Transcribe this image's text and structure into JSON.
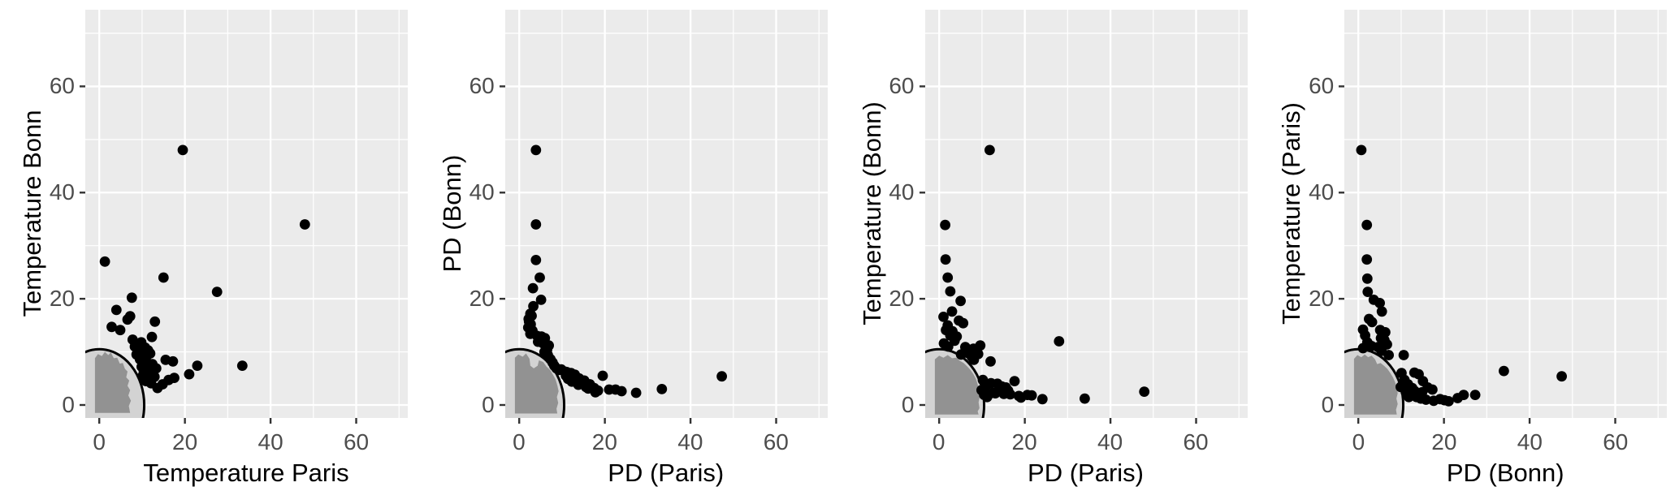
{
  "figure_title": "",
  "style": {
    "page_background": "#ffffff",
    "panel_background": "#ebebeb",
    "grid_color": "#ffffff",
    "point_color": "#000000",
    "circle_fill": "#d3d3d3",
    "circle_stroke": "#000000",
    "cluster_blob_color": "#929292",
    "tick_mark_color": "#333333",
    "tick_label_color": "#4d4d4d",
    "axis_title_color": "#000000"
  },
  "axes": {
    "tick_values": [
      0,
      20,
      40,
      60
    ],
    "major_gridlines": [
      0,
      20,
      40,
      60
    ],
    "minor_gridlines": [
      10,
      30,
      50,
      70
    ],
    "xlim": [
      -3.3,
      72.0
    ],
    "ylim": [
      -2.45,
      74.4
    ],
    "grid": "on",
    "legend": "none"
  },
  "chart_data": [
    {
      "type": "scatter",
      "xlabel": "Temperature Paris",
      "ylabel": "Temperature Bonn",
      "x_tick_labels": [
        "0",
        "20",
        "40",
        "60"
      ],
      "y_tick_labels": [
        "0",
        "20",
        "40",
        "60"
      ],
      "decision_circle": {
        "cx": 0,
        "cy": 0,
        "r": 10.5
      },
      "cluster_description": "dense cluster of overlapping grey inlier points inside quarter-circle near origin",
      "cluster_blob": [
        [
          -1,
          -1.5
        ],
        [
          -1,
          8.8
        ],
        [
          -0.3,
          9.6
        ],
        [
          0.6,
          9.2
        ],
        [
          1.3,
          10.0
        ],
        [
          2.1,
          9.4
        ],
        [
          2.7,
          9.9
        ],
        [
          3.4,
          8.8
        ],
        [
          4.2,
          8.9
        ],
        [
          4.8,
          7.8
        ],
        [
          5.5,
          7.9
        ],
        [
          6.0,
          6.8
        ],
        [
          6.6,
          6.3
        ],
        [
          6.3,
          5.2
        ],
        [
          7.0,
          4.6
        ],
        [
          6.6,
          3.6
        ],
        [
          7.2,
          2.8
        ],
        [
          6.8,
          1.8
        ],
        [
          7.4,
          0.8
        ],
        [
          6.9,
          -0.2
        ],
        [
          7.2,
          -1.5
        ]
      ],
      "points": [
        [
          19.5,
          48
        ],
        [
          48,
          34
        ],
        [
          1.3,
          27
        ],
        [
          15,
          24
        ],
        [
          27.5,
          21.3
        ],
        [
          7.6,
          20.2
        ],
        [
          4,
          17.9
        ],
        [
          7.2,
          16.7
        ],
        [
          6.6,
          16.1
        ],
        [
          13,
          15.7
        ],
        [
          2.9,
          14.7
        ],
        [
          4.9,
          14.1
        ],
        [
          12.3,
          12.8
        ],
        [
          7.8,
          12.3
        ],
        [
          9.8,
          11.8
        ],
        [
          8.3,
          11
        ],
        [
          10.7,
          10.8
        ],
        [
          11.4,
          10.3
        ],
        [
          9.2,
          10.4
        ],
        [
          8.7,
          9.5
        ],
        [
          10.2,
          9.1
        ],
        [
          11.9,
          9.7
        ],
        [
          9.5,
          8.6
        ],
        [
          10.9,
          8.3
        ],
        [
          12.4,
          7.7
        ],
        [
          15.5,
          8.5
        ],
        [
          17.2,
          8.2
        ],
        [
          22.9,
          7.4
        ],
        [
          33.4,
          7.4
        ],
        [
          21,
          5.8
        ],
        [
          17.5,
          5.1
        ],
        [
          16.2,
          4.7
        ],
        [
          14.8,
          3.9
        ],
        [
          13.6,
          3.2
        ],
        [
          12.9,
          5.3
        ],
        [
          11.6,
          6.4
        ],
        [
          10.9,
          4.5
        ],
        [
          13.3,
          6.9
        ],
        [
          12.1,
          4.1
        ],
        [
          11.2,
          7.4
        ],
        [
          10.4,
          6.2
        ],
        [
          9.9,
          7.2
        ],
        [
          10.1,
          5.4
        ],
        [
          11,
          5.9
        ],
        [
          12.6,
          6.1
        ],
        [
          9.7,
          9.9
        ],
        [
          8.9,
          10.6
        ],
        [
          9.9,
          10.9
        ],
        [
          10.5,
          9.9
        ],
        [
          11.1,
          9.3
        ],
        [
          10,
          8.4
        ]
      ]
    },
    {
      "type": "scatter",
      "xlabel": "PD (Paris)",
      "ylabel": "PD (Bonn)",
      "x_tick_labels": [
        "0",
        "20",
        "40",
        "60"
      ],
      "y_tick_labels": [
        "0",
        "20",
        "40",
        "60"
      ],
      "decision_circle": {
        "cx": 0,
        "cy": 0,
        "r": 10.5
      },
      "cluster_description": "dense cluster of overlapping grey inlier points filling quarter-circle near origin",
      "cluster_blob": [
        [
          -1,
          -1.6
        ],
        [
          -1,
          8.9
        ],
        [
          -0.2,
          9.5
        ],
        [
          0.8,
          9.1
        ],
        [
          1.6,
          9.7
        ],
        [
          2.4,
          8.7
        ],
        [
          2.6,
          7.4
        ],
        [
          3.4,
          6.9
        ],
        [
          4.3,
          7.4
        ],
        [
          4.6,
          8.4
        ],
        [
          5.6,
          8.1
        ],
        [
          6.4,
          7.2
        ],
        [
          7.2,
          6.6
        ],
        [
          7.9,
          5.7
        ],
        [
          8.5,
          4.8
        ],
        [
          8.9,
          3.7
        ],
        [
          9.2,
          2.6
        ],
        [
          8.8,
          1.5
        ],
        [
          9.1,
          0.4
        ],
        [
          8.7,
          -0.7
        ],
        [
          8.9,
          -1.6
        ]
      ],
      "points": [
        [
          3.9,
          48
        ],
        [
          3.9,
          34
        ],
        [
          3.9,
          27.3
        ],
        [
          4.8,
          24
        ],
        [
          3.2,
          22
        ],
        [
          5.1,
          19.8
        ],
        [
          3.3,
          18.6
        ],
        [
          2.6,
          17.2
        ],
        [
          2.2,
          16.2
        ],
        [
          2.9,
          16.8
        ],
        [
          2.7,
          15.2
        ],
        [
          2.3,
          15.7
        ],
        [
          2.1,
          14.6
        ],
        [
          3.1,
          14
        ],
        [
          2.6,
          13.4
        ],
        [
          4.2,
          13
        ],
        [
          5.2,
          12.9
        ],
        [
          6,
          12.6
        ],
        [
          5.6,
          11.6
        ],
        [
          4.4,
          11.9
        ],
        [
          6.9,
          11.2
        ],
        [
          6.5,
          10.4
        ],
        [
          5.9,
          10
        ],
        [
          6.7,
          9.4
        ],
        [
          7.3,
          8.6
        ],
        [
          7.8,
          8
        ],
        [
          8.2,
          7.4
        ],
        [
          8.7,
          6.9
        ],
        [
          9.3,
          6.6
        ],
        [
          9.8,
          6.7
        ],
        [
          10.6,
          6.3
        ],
        [
          11.1,
          6.2
        ],
        [
          11.6,
          5.8
        ],
        [
          12.1,
          6
        ],
        [
          12.6,
          5.4
        ],
        [
          13,
          5.7
        ],
        [
          13.5,
          5
        ],
        [
          14,
          5
        ],
        [
          14.9,
          4.2
        ],
        [
          15.6,
          3.4
        ],
        [
          16.5,
          3.9
        ],
        [
          17.5,
          3.2
        ],
        [
          17.8,
          2.4
        ],
        [
          18.4,
          2.7
        ],
        [
          19.5,
          5.5
        ],
        [
          21,
          2.9
        ],
        [
          22.5,
          2.9
        ],
        [
          23.9,
          2.6
        ],
        [
          27.3,
          2.3
        ],
        [
          33.3,
          3
        ],
        [
          47.3,
          5.4
        ],
        [
          12.3,
          4.4
        ],
        [
          13.8,
          3.8
        ],
        [
          11.4,
          4.9
        ],
        [
          10.9,
          5.5
        ],
        [
          15.2,
          4.6
        ],
        [
          16.1,
          3.1
        ]
      ]
    },
    {
      "type": "scatter",
      "xlabel": "PD (Paris)",
      "ylabel": "Temperature (Bonn)",
      "x_tick_labels": [
        "0",
        "20",
        "40",
        "60"
      ],
      "y_tick_labels": [
        "0",
        "20",
        "40",
        "60"
      ],
      "decision_circle": {
        "cx": 0,
        "cy": 0,
        "r": 10.5
      },
      "cluster_description": "dense cluster of overlapping grey inlier points filling quarter-circle near origin",
      "cluster_blob": [
        [
          -1,
          -1.8
        ],
        [
          -1,
          8.6
        ],
        [
          0,
          9.3
        ],
        [
          1,
          8.9
        ],
        [
          2,
          9.4
        ],
        [
          3,
          8.8
        ],
        [
          4,
          8.9
        ],
        [
          4.9,
          8.3
        ],
        [
          5.7,
          7.9
        ],
        [
          6.5,
          7.3
        ],
        [
          7.3,
          6.6
        ],
        [
          8,
          5.8
        ],
        [
          8.6,
          4.9
        ],
        [
          9,
          3.9
        ],
        [
          9.3,
          2.8
        ],
        [
          9.5,
          1.6
        ],
        [
          9.2,
          0.5
        ],
        [
          9.4,
          -0.6
        ],
        [
          9,
          -1.2
        ],
        [
          9.2,
          -1.8
        ]
      ],
      "points": [
        [
          11.8,
          48
        ],
        [
          1.4,
          33.9
        ],
        [
          1.5,
          27.4
        ],
        [
          2,
          24
        ],
        [
          2.6,
          21.4
        ],
        [
          5,
          19.6
        ],
        [
          3,
          17.6
        ],
        [
          1,
          16.6
        ],
        [
          4.6,
          15.9
        ],
        [
          5.6,
          15.4
        ],
        [
          2,
          15
        ],
        [
          1.6,
          14.1
        ],
        [
          3.1,
          13.9
        ],
        [
          2.6,
          13.1
        ],
        [
          4.1,
          12.9
        ],
        [
          3.6,
          12.1
        ],
        [
          1.1,
          11.6
        ],
        [
          2.1,
          11
        ],
        [
          28,
          12
        ],
        [
          6.1,
          10.9
        ],
        [
          8,
          10.6
        ],
        [
          9.6,
          11.2
        ],
        [
          7.1,
          10
        ],
        [
          5.1,
          9.5
        ],
        [
          8.1,
          8.5
        ],
        [
          12,
          8.2
        ],
        [
          7.6,
          9.1
        ],
        [
          6.6,
          9.8
        ],
        [
          9.1,
          9.6
        ],
        [
          10.2,
          4.7
        ],
        [
          10.9,
          3.6
        ],
        [
          11.6,
          2
        ],
        [
          12.1,
          4.1
        ],
        [
          12.6,
          2.3
        ],
        [
          13.1,
          2.2
        ],
        [
          13.6,
          4
        ],
        [
          14.1,
          3.3
        ],
        [
          14.6,
          3.5
        ],
        [
          15.1,
          2.1
        ],
        [
          15.6,
          3.3
        ],
        [
          16.1,
          2.7
        ],
        [
          16.6,
          2
        ],
        [
          17.6,
          4.5
        ],
        [
          18.6,
          1.7
        ],
        [
          19.1,
          1.4
        ],
        [
          20.6,
          1.9
        ],
        [
          21.6,
          1.8
        ],
        [
          24.1,
          1.1
        ],
        [
          34,
          1.2
        ],
        [
          47.9,
          2.5
        ],
        [
          9.9,
          2.8
        ],
        [
          10.5,
          1.9
        ],
        [
          11.2,
          1.5
        ]
      ]
    },
    {
      "type": "scatter",
      "xlabel": "PD (Bonn)",
      "ylabel": "Temperature (Paris)",
      "x_tick_labels": [
        "0",
        "20",
        "40",
        "60"
      ],
      "y_tick_labels": [
        "0",
        "20",
        "40",
        "60"
      ],
      "decision_circle": {
        "cx": 0,
        "cy": 0,
        "r": 10.5
      },
      "cluster_description": "dense cluster of overlapping grey inlier points filling quarter-circle near origin",
      "cluster_blob": [
        [
          -1,
          -1.8
        ],
        [
          -1,
          8.7
        ],
        [
          -0.2,
          9.4
        ],
        [
          0.7,
          9.0
        ],
        [
          1.5,
          9.5
        ],
        [
          2.3,
          9.0
        ],
        [
          3.1,
          9.3
        ],
        [
          3.9,
          8.6
        ],
        [
          4.4,
          7.7
        ],
        [
          5.2,
          7.9
        ],
        [
          6,
          7.4
        ],
        [
          6.8,
          6.8
        ],
        [
          7.5,
          6
        ],
        [
          8.1,
          5.2
        ],
        [
          8.6,
          4.3
        ],
        [
          9,
          3.3
        ],
        [
          9.2,
          2.2
        ],
        [
          8.9,
          1.2
        ],
        [
          9.2,
          0.2
        ],
        [
          8.8,
          -0.9
        ],
        [
          9,
          -1.8
        ]
      ],
      "points": [
        [
          0.7,
          48
        ],
        [
          2,
          33.9
        ],
        [
          2,
          27.4
        ],
        [
          2.1,
          23.8
        ],
        [
          2.2,
          21.3
        ],
        [
          3.6,
          19.8
        ],
        [
          5,
          19.2
        ],
        [
          5.5,
          17.6
        ],
        [
          2.5,
          16.2
        ],
        [
          3.2,
          15.6
        ],
        [
          1.1,
          14.2
        ],
        [
          5.1,
          14.1
        ],
        [
          6.3,
          13.7
        ],
        [
          1.6,
          13.1
        ],
        [
          5.3,
          12.6
        ],
        [
          6.1,
          12.2
        ],
        [
          2.1,
          11.8
        ],
        [
          3.1,
          11.1
        ],
        [
          1.1,
          10.7
        ],
        [
          4.6,
          10.9
        ],
        [
          5.4,
          10.2
        ],
        [
          7.1,
          9.4
        ],
        [
          10.6,
          9.4
        ],
        [
          6.7,
          11.4
        ],
        [
          10.1,
          6
        ],
        [
          13.1,
          6.1
        ],
        [
          14.1,
          5.8
        ],
        [
          15.1,
          4.5
        ],
        [
          16.2,
          3.3
        ],
        [
          17.3,
          2.9
        ],
        [
          11.1,
          2.4
        ],
        [
          11.8,
          1.5
        ],
        [
          12.6,
          3.2
        ],
        [
          13.6,
          1.5
        ],
        [
          14.6,
          1.2
        ],
        [
          14.9,
          2.4
        ],
        [
          15.8,
          1
        ],
        [
          17.6,
          0.8
        ],
        [
          19.1,
          1.1
        ],
        [
          20.1,
          0.9
        ],
        [
          21.1,
          0.7
        ],
        [
          23.2,
          1.3
        ],
        [
          24.6,
          1.9
        ],
        [
          27.3,
          1.9
        ],
        [
          34,
          6.4
        ],
        [
          47.5,
          5.4
        ],
        [
          11.6,
          3.9
        ],
        [
          10.8,
          4.7
        ],
        [
          9.9,
          3.4
        ],
        [
          13.2,
          2.6
        ]
      ]
    }
  ]
}
